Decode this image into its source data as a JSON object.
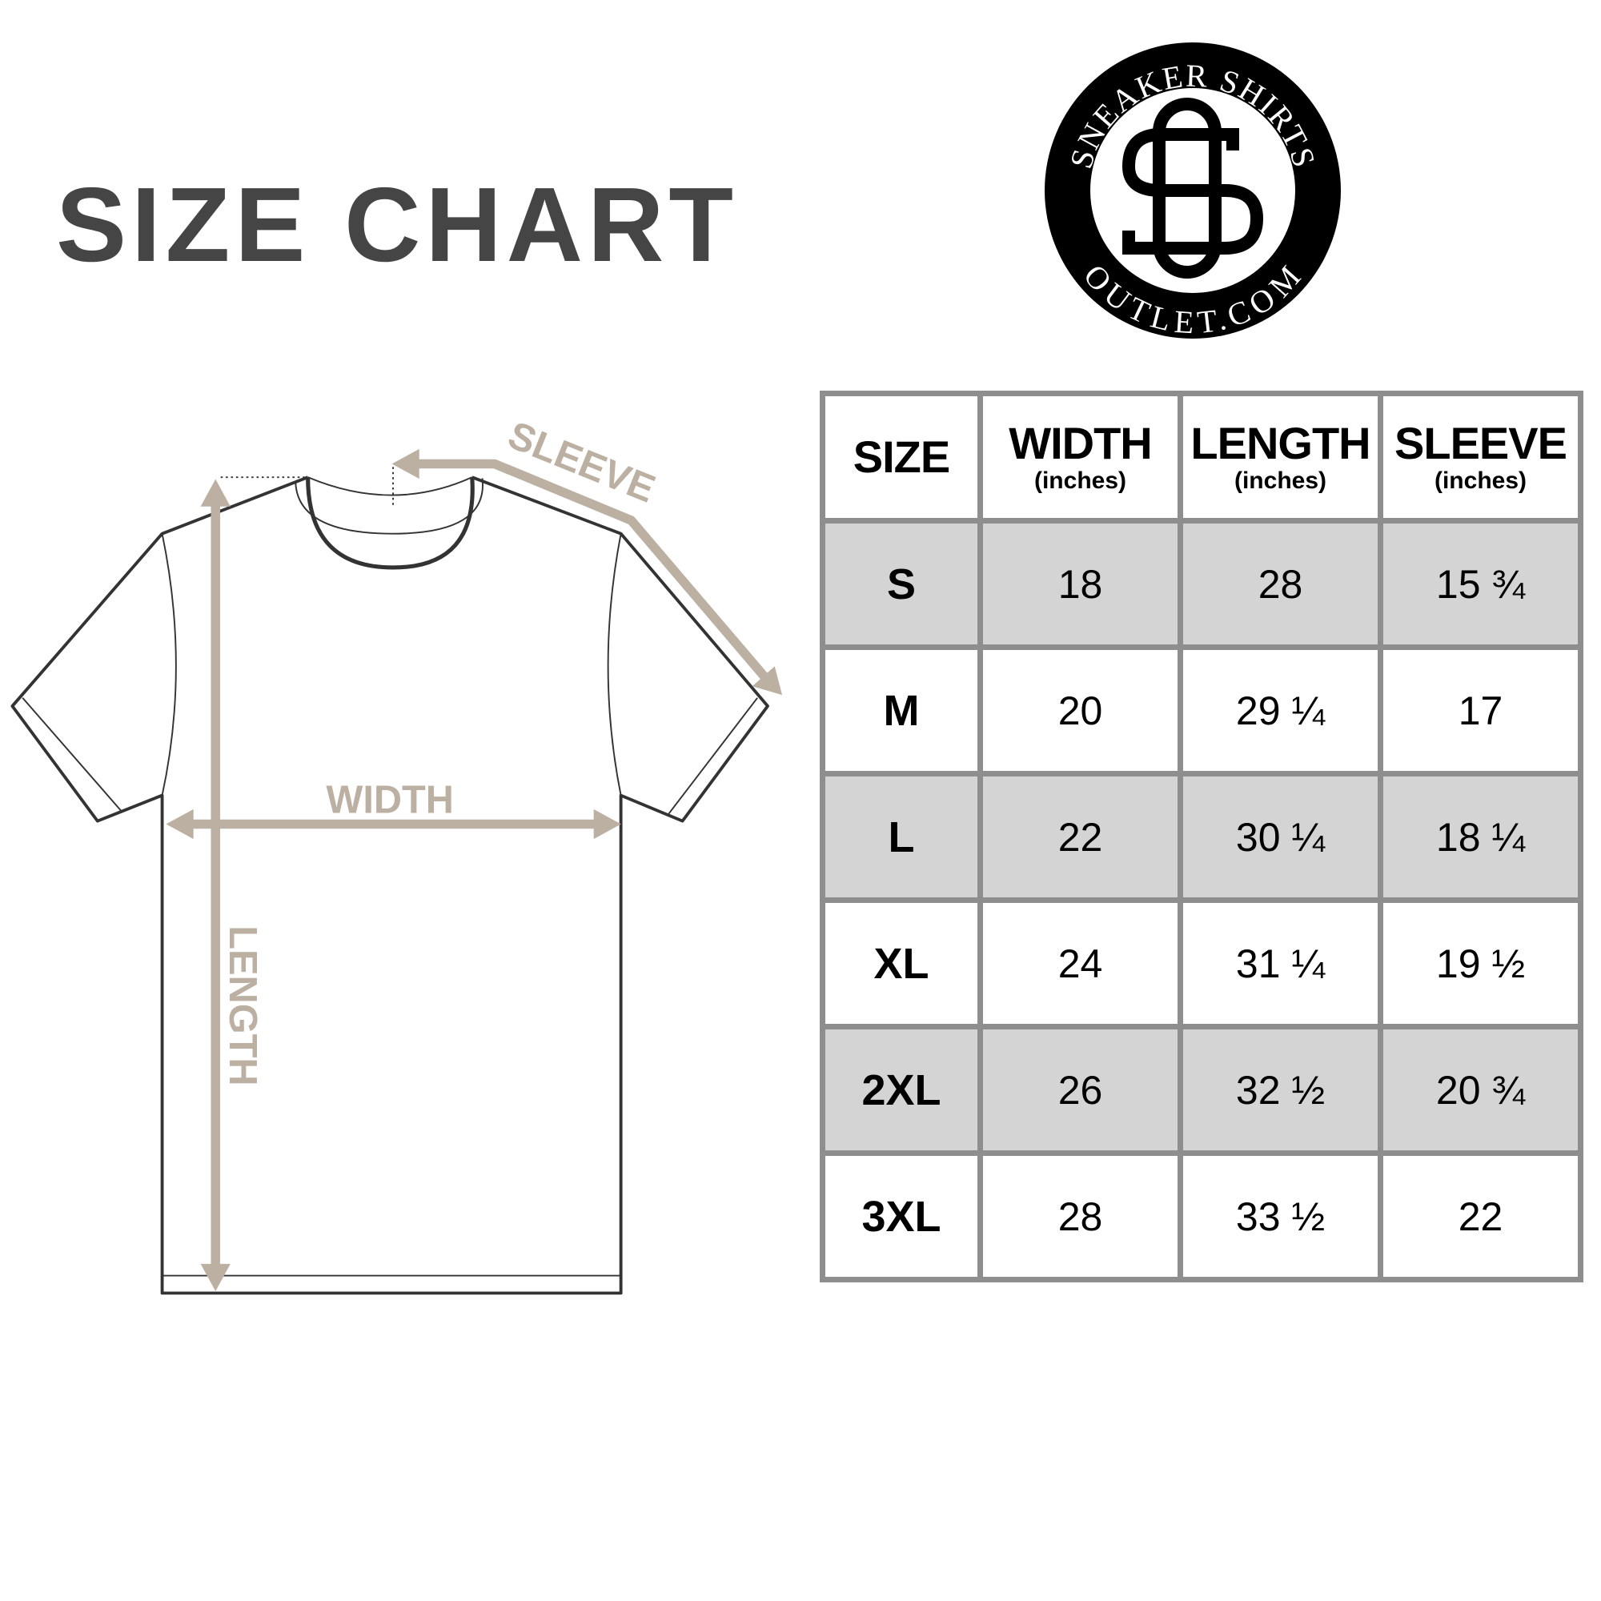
{
  "title": "SIZE CHART",
  "logo": {
    "top_text": "SNEAKER SHIRTS",
    "bottom_text": "OUTLET.COM",
    "monogram": "SO"
  },
  "diagram": {
    "labels": {
      "width": "WIDTH",
      "length": "LENGTH",
      "sleeve": "SLEEVE"
    },
    "arrow_color": "#bcb0a2"
  },
  "table": {
    "headers": [
      {
        "main": "SIZE",
        "sub": ""
      },
      {
        "main": "WIDTH",
        "sub": "(inches)"
      },
      {
        "main": "LENGTH",
        "sub": "(inches)"
      },
      {
        "main": "SLEEVE",
        "sub": "(inches)"
      }
    ],
    "rows": [
      [
        "S",
        "18",
        "28",
        "15 ¾"
      ],
      [
        "M",
        "20",
        "29 ¼",
        "17"
      ],
      [
        "L",
        "22",
        "30 ¼",
        "18 ¼"
      ],
      [
        "XL",
        "24",
        "31 ¼",
        "19 ½"
      ],
      [
        "2XL",
        "26",
        "32 ½",
        "20 ¾"
      ],
      [
        "3XL",
        "28",
        "33 ½",
        "22"
      ]
    ],
    "shade_color": "#d4d4d4",
    "border_color": "#8e8e8e"
  }
}
